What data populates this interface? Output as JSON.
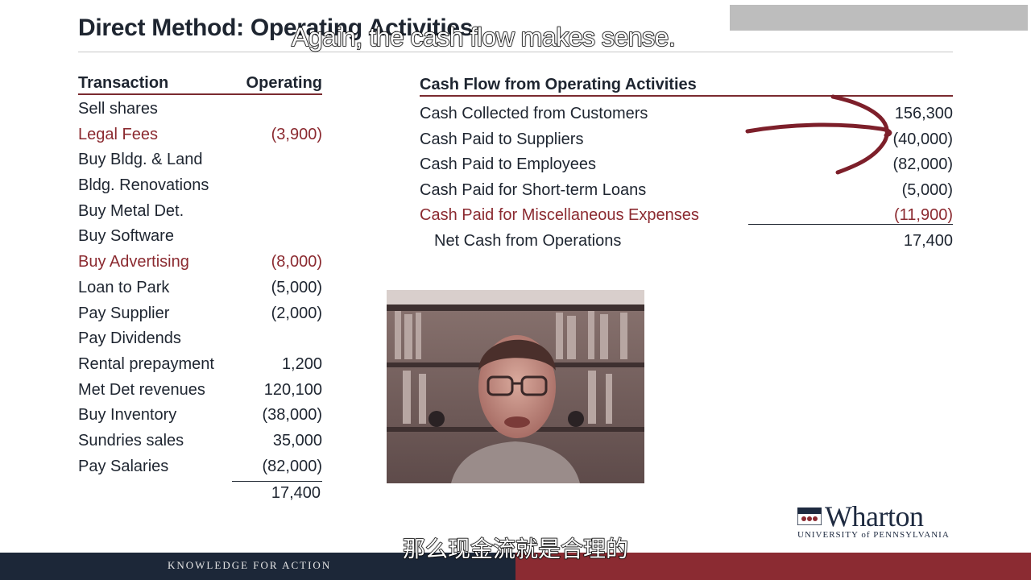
{
  "slide": {
    "title": "Direct Method: Operating Activities"
  },
  "captions": {
    "top": "Again, the cash flow makes sense.",
    "bottom": "那么现金流就是合理的"
  },
  "left_table": {
    "headers": {
      "transaction": "Transaction",
      "operating": "Operating"
    },
    "rows": [
      {
        "label": "Sell shares",
        "amount": "",
        "highlight": false
      },
      {
        "label": "Legal Fees",
        "amount": "(3,900)",
        "highlight": true
      },
      {
        "label": "Buy Bldg. & Land",
        "amount": "",
        "highlight": false
      },
      {
        "label": "Bldg. Renovations",
        "amount": "",
        "highlight": false
      },
      {
        "label": "Buy Metal Det.",
        "amount": "",
        "highlight": false
      },
      {
        "label": "Buy Software",
        "amount": "",
        "highlight": false
      },
      {
        "label": "Buy Advertising",
        "amount": "(8,000)",
        "highlight": true
      },
      {
        "label": "Loan to Park",
        "amount": "(5,000)",
        "highlight": false
      },
      {
        "label": "Pay Supplier",
        "amount": "(2,000)",
        "highlight": false
      },
      {
        "label": "Pay Dividends",
        "amount": "",
        "highlight": false
      },
      {
        "label": "Rental prepayment",
        "amount": "1,200",
        "highlight": false
      },
      {
        "label": "Met Det revenues",
        "amount": "120,100",
        "highlight": false
      },
      {
        "label": "Buy Inventory",
        "amount": "(38,000)",
        "highlight": false
      },
      {
        "label": "Sundries sales",
        "amount": "35,000",
        "highlight": false
      },
      {
        "label": "Pay Salaries",
        "amount": "(82,000)",
        "highlight": false
      }
    ],
    "total": "17,400"
  },
  "right_table": {
    "header": "Cash Flow from Operating Activities",
    "rows": [
      {
        "label": "Cash Collected from Customers",
        "amount": "156,300",
        "highlight": false
      },
      {
        "label": "Cash Paid to Suppliers",
        "amount": "(40,000)",
        "highlight": false
      },
      {
        "label": "Cash Paid to Employees",
        "amount": "(82,000)",
        "highlight": false
      },
      {
        "label": "Cash Paid for Short-term Loans",
        "amount": "(5,000)",
        "highlight": false
      },
      {
        "label": "Cash Paid for Miscellaneous Expenses",
        "amount": "(11,900)",
        "highlight": true
      }
    ],
    "net": {
      "label": "Net Cash from Operations",
      "amount": "17,400"
    }
  },
  "logo": {
    "name": "Wharton",
    "subtitle": "UNIVERSITY of PENNSYLVANIA"
  },
  "footer": {
    "tagline": "KNOWLEDGE FOR ACTION"
  },
  "colors": {
    "navy": "#1c2738",
    "maroon": "#8b2b32",
    "highlight_text": "#8b2a30",
    "annotation": "#7d1f2a"
  }
}
